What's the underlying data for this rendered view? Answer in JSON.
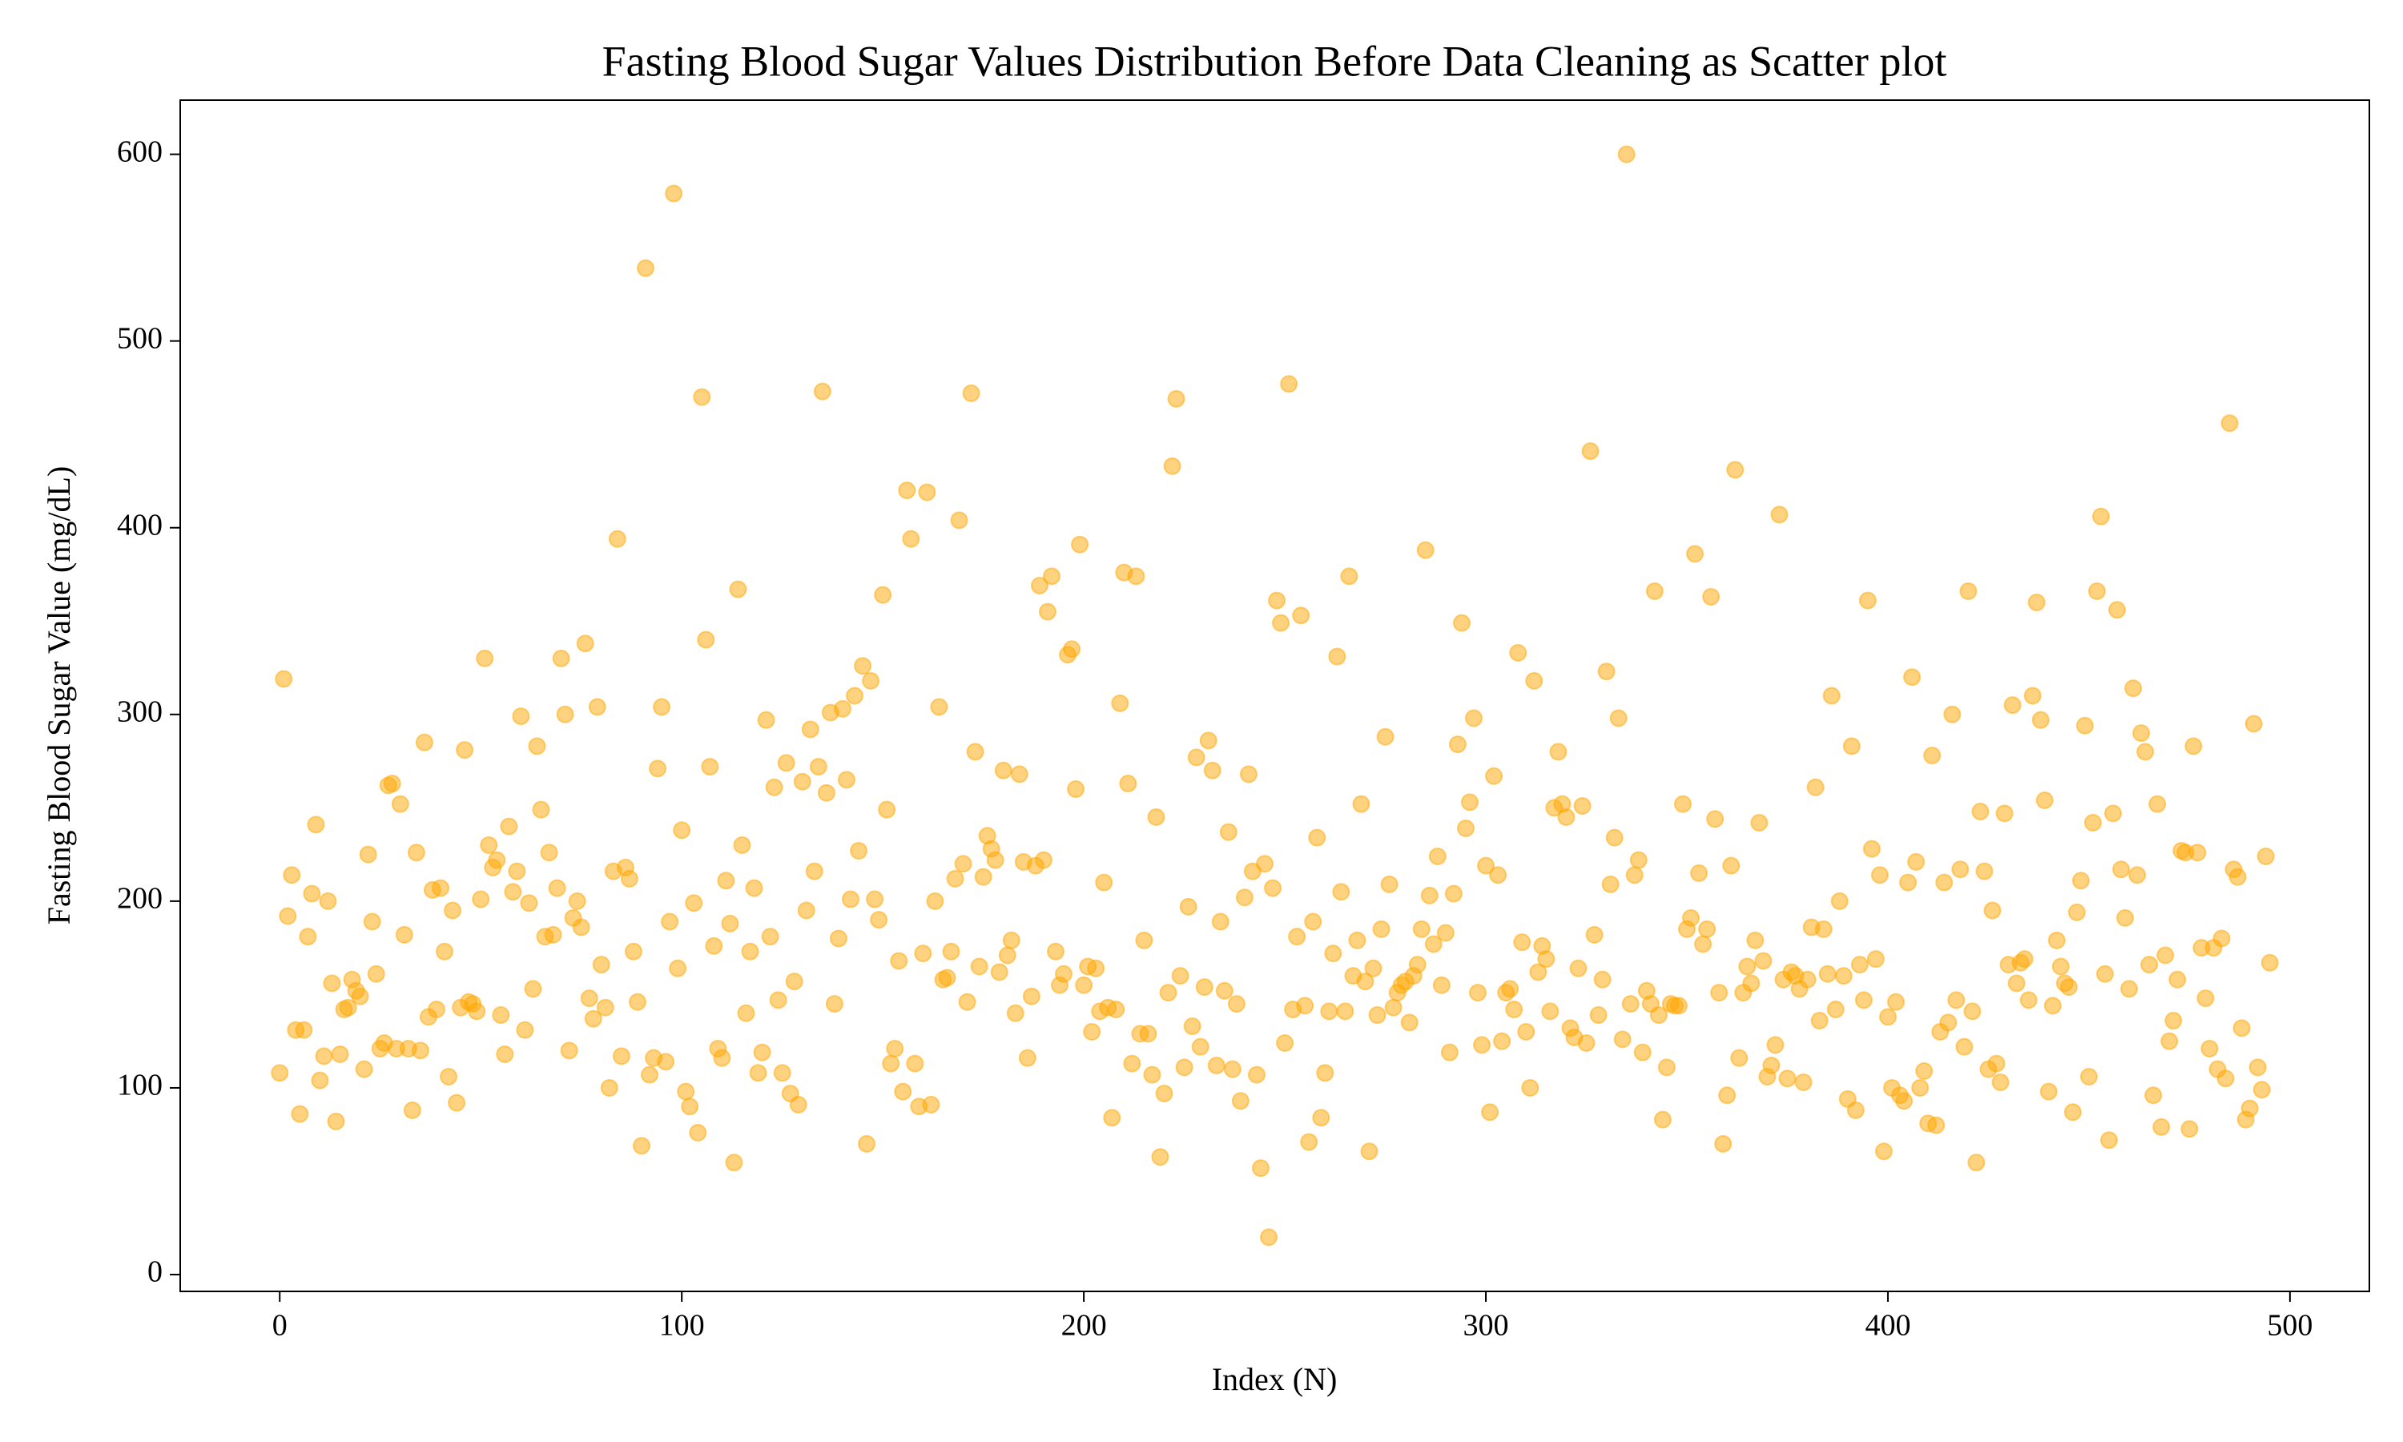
{
  "chart_data": {
    "type": "scatter",
    "title": "Fasting Blood Sugar Values Distribution Before Data Cleaning as Scatter plot",
    "x_label": "Index (N)",
    "y_label": "Fasting Blood Sugar Value (mg/dL)",
    "color": "#ffa500",
    "opacity": 0.5,
    "xlim": [
      -24.75,
      519.75
    ],
    "ylim": [
      -9,
      629
    ],
    "xticks": [
      0,
      100,
      200,
      300,
      400,
      500
    ],
    "yticks": [
      0,
      100,
      200,
      300,
      400,
      500,
      600
    ],
    "grid": false,
    "x": [
      0,
      1,
      2,
      3,
      4,
      5,
      6,
      7,
      8,
      9,
      10,
      11,
      12,
      13,
      14,
      15,
      16,
      17,
      18,
      19,
      20,
      21,
      22,
      23,
      24,
      25,
      26,
      27,
      28,
      29,
      30,
      31,
      32,
      33,
      34,
      35,
      36,
      37,
      38,
      39,
      40,
      41,
      42,
      43,
      44,
      45,
      46,
      47,
      48,
      49,
      50,
      51,
      52,
      53,
      54,
      55,
      56,
      57,
      58,
      59,
      60,
      61,
      62,
      63,
      64,
      65,
      66,
      67,
      68,
      69,
      70,
      71,
      72,
      73,
      74,
      75,
      76,
      77,
      78,
      79,
      80,
      81,
      82,
      83,
      84,
      85,
      86,
      87,
      88,
      89,
      90,
      91,
      92,
      93,
      94,
      95,
      96,
      97,
      98,
      99,
      100,
      101,
      102,
      103,
      104,
      105,
      106,
      107,
      108,
      109,
      110,
      111,
      112,
      113,
      114,
      115,
      116,
      117,
      118,
      119,
      120,
      121,
      122,
      123,
      124,
      125,
      126,
      127,
      128,
      129,
      130,
      131,
      132,
      133,
      134,
      135,
      136,
      137,
      138,
      139,
      140,
      141,
      142,
      143,
      144,
      145,
      146,
      147,
      148,
      149,
      150,
      151,
      152,
      153,
      154,
      155,
      156,
      157,
      158,
      159,
      160,
      161,
      162,
      163,
      164,
      165,
      166,
      167,
      168,
      169,
      170,
      171,
      172,
      173,
      174,
      175,
      176,
      177,
      178,
      179,
      180,
      181,
      182,
      183,
      184,
      185,
      186,
      187,
      188,
      189,
      190,
      191,
      192,
      193,
      194,
      195,
      196,
      197,
      198,
      199,
      200,
      201,
      202,
      203,
      204,
      205,
      206,
      207,
      208,
      209,
      210,
      211,
      212,
      213,
      214,
      215,
      216,
      217,
      218,
      219,
      220,
      221,
      222,
      223,
      224,
      225,
      226,
      227,
      228,
      229,
      230,
      231,
      232,
      233,
      234,
      235,
      236,
      237,
      238,
      239,
      240,
      241,
      242,
      243,
      244,
      245,
      246,
      247,
      248,
      249,
      250,
      251,
      252,
      253,
      254,
      255,
      256,
      257,
      258,
      259,
      260,
      261,
      262,
      263,
      264,
      265,
      266,
      267,
      268,
      269,
      270,
      271,
      272,
      273,
      274,
      275,
      276,
      277,
      278,
      279,
      280,
      281,
      282,
      283,
      284,
      285,
      286,
      287,
      288,
      289,
      290,
      291,
      292,
      293,
      294,
      295,
      296,
      297,
      298,
      299,
      300,
      301,
      302,
      303,
      304,
      305,
      306,
      307,
      308,
      309,
      310,
      311,
      312,
      313,
      314,
      315,
      316,
      317,
      318,
      319,
      320,
      321,
      322,
      323,
      324,
      325,
      326,
      327,
      328,
      329,
      330,
      331,
      332,
      333,
      334,
      335,
      336,
      337,
      338,
      339,
      340,
      341,
      342,
      343,
      344,
      345,
      346,
      347,
      348,
      349,
      350,
      351,
      352,
      353,
      354,
      355,
      356,
      357,
      358,
      359,
      360,
      361,
      362,
      363,
      364,
      365,
      366,
      367,
      368,
      369,
      370,
      371,
      372,
      373,
      374,
      375,
      376,
      377,
      378,
      379,
      380,
      381,
      382,
      383,
      384,
      385,
      386,
      387,
      388,
      389,
      390,
      391,
      392,
      393,
      394,
      395,
      396,
      397,
      398,
      399,
      400,
      401,
      402,
      403,
      404,
      405,
      406,
      407,
      408,
      409,
      410,
      411,
      412,
      413,
      414,
      415,
      416,
      417,
      418,
      419,
      420,
      421,
      422,
      423,
      424,
      425,
      426,
      427,
      428,
      429,
      430,
      431,
      432,
      433,
      434,
      435,
      436,
      437,
      438,
      439,
      440,
      441,
      442,
      443,
      444,
      445,
      446,
      447,
      448,
      449,
      450,
      451,
      452,
      453,
      454,
      455,
      456,
      457,
      458,
      459,
      460,
      461,
      462,
      463,
      464,
      465,
      466,
      467,
      468,
      469,
      470,
      471,
      472,
      473,
      474,
      475,
      476,
      477,
      478,
      479,
      480,
      481,
      482,
      483,
      484,
      485,
      486,
      487,
      488,
      489,
      490,
      491,
      492,
      493,
      494,
      495
    ],
    "values": [
      108,
      319,
      192,
      214,
      131,
      86,
      131,
      181,
      204,
      241,
      104,
      117,
      200,
      156,
      82,
      118,
      142,
      143,
      158,
      152,
      149,
      110,
      225,
      189,
      161,
      121,
      124,
      262,
      263,
      121,
      252,
      182,
      121,
      88,
      226,
      120,
      285,
      138,
      206,
      142,
      207,
      173,
      106,
      195,
      92,
      143,
      281,
      146,
      145,
      141,
      201,
      330,
      230,
      218,
      222,
      139,
      118,
      240,
      205,
      216,
      299,
      131,
      199,
      153,
      283,
      249,
      181,
      226,
      182,
      207,
      330,
      300,
      120,
      191,
      200,
      186,
      338,
      148,
      137,
      304,
      166,
      143,
      100,
      216,
      394,
      117,
      218,
      212,
      173,
      146,
      69,
      539,
      107,
      116,
      271,
      304,
      114,
      189,
      579,
      164,
      238,
      98,
      90,
      199,
      76,
      470,
      340,
      272,
      176,
      121,
      116,
      211,
      188,
      60,
      367,
      230,
      140,
      173,
      207,
      108,
      119,
      297,
      181,
      261,
      147,
      108,
      274,
      97,
      157,
      91,
      264,
      195,
      292,
      216,
      272,
      473,
      258,
      301,
      145,
      180,
      303,
      265,
      201,
      310,
      227,
      326,
      70,
      318,
      201,
      190,
      364,
      249,
      113,
      121,
      168,
      98,
      420,
      394,
      113,
      90,
      172,
      419,
      91,
      200,
      304,
      158,
      159,
      173,
      212,
      404,
      220,
      146,
      472,
      280,
      165,
      213,
      235,
      228,
      222,
      162,
      270,
      171,
      179,
      140,
      268,
      221,
      116,
      149,
      219,
      369,
      222,
      355,
      374,
      173,
      155,
      161,
      332,
      335,
      260,
      391,
      155,
      165,
      130,
      164,
      141,
      210,
      143,
      84,
      142,
      306,
      376,
      263,
      113,
      374,
      129,
      179,
      129,
      107,
      245,
      63,
      97,
      151,
      433,
      469,
      160,
      111,
      197,
      133,
      277,
      122,
      154,
      286,
      270,
      112,
      189,
      152,
      237,
      110,
      145,
      93,
      202,
      268,
      216,
      107,
      57,
      220,
      20,
      207,
      361,
      349,
      124,
      477,
      142,
      181,
      353,
      144,
      71,
      189,
      234,
      84,
      108,
      141,
      172,
      331,
      205,
      141,
      374,
      160,
      179,
      252,
      157,
      66,
      164,
      139,
      185,
      288,
      209,
      143,
      151,
      155,
      157,
      135,
      160,
      166,
      185,
      388,
      203,
      177,
      224,
      155,
      183,
      119,
      204,
      284,
      349,
      239,
      253,
      298,
      151,
      123,
      219,
      87,
      267,
      214,
      125,
      151,
      153,
      142,
      333,
      178,
      130,
      100,
      318,
      162,
      176,
      169,
      141,
      250,
      280,
      252,
      245,
      132,
      127,
      164,
      251,
      124,
      441,
      182,
      139,
      158,
      323,
      209,
      234,
      298,
      126,
      600,
      145,
      214,
      222,
      119,
      152,
      145,
      366,
      139,
      83,
      111,
      145,
      144,
      144,
      252,
      185,
      191,
      386,
      215,
      177,
      185,
      363,
      244,
      151,
      70,
      96,
      219,
      431,
      116,
      151,
      165,
      156,
      179,
      242,
      168,
      106,
      112,
      123,
      407,
      158,
      105,
      162,
      160,
      153,
      103,
      158,
      186,
      261,
      136,
      185,
      161,
      310,
      142,
      200,
      160,
      94,
      283,
      88,
      166,
      147,
      361,
      228,
      169,
      214,
      66,
      138,
      100,
      146,
      96,
      93,
      210,
      320,
      221,
      100,
      109,
      81,
      278,
      80,
      130,
      210,
      135,
      300,
      147,
      217,
      122,
      366,
      141,
      60,
      248,
      216,
      110,
      195,
      113,
      103,
      247,
      166,
      305,
      156,
      167,
      169,
      147,
      310,
      360,
      297,
      254,
      98,
      144,
      179,
      165,
      156,
      154,
      87,
      194,
      211,
      294,
      106,
      242,
      366,
      406,
      161,
      72,
      247,
      356,
      217,
      191,
      153,
      314,
      214,
      290,
      280,
      166,
      96,
      252,
      79,
      171,
      125,
      136,
      158,
      227,
      226,
      78,
      283,
      226,
      175,
      148,
      121,
      175,
      110,
      180,
      105,
      456,
      217,
      213,
      132,
      83,
      89,
      295,
      111,
      99,
      224,
      167
    ]
  }
}
